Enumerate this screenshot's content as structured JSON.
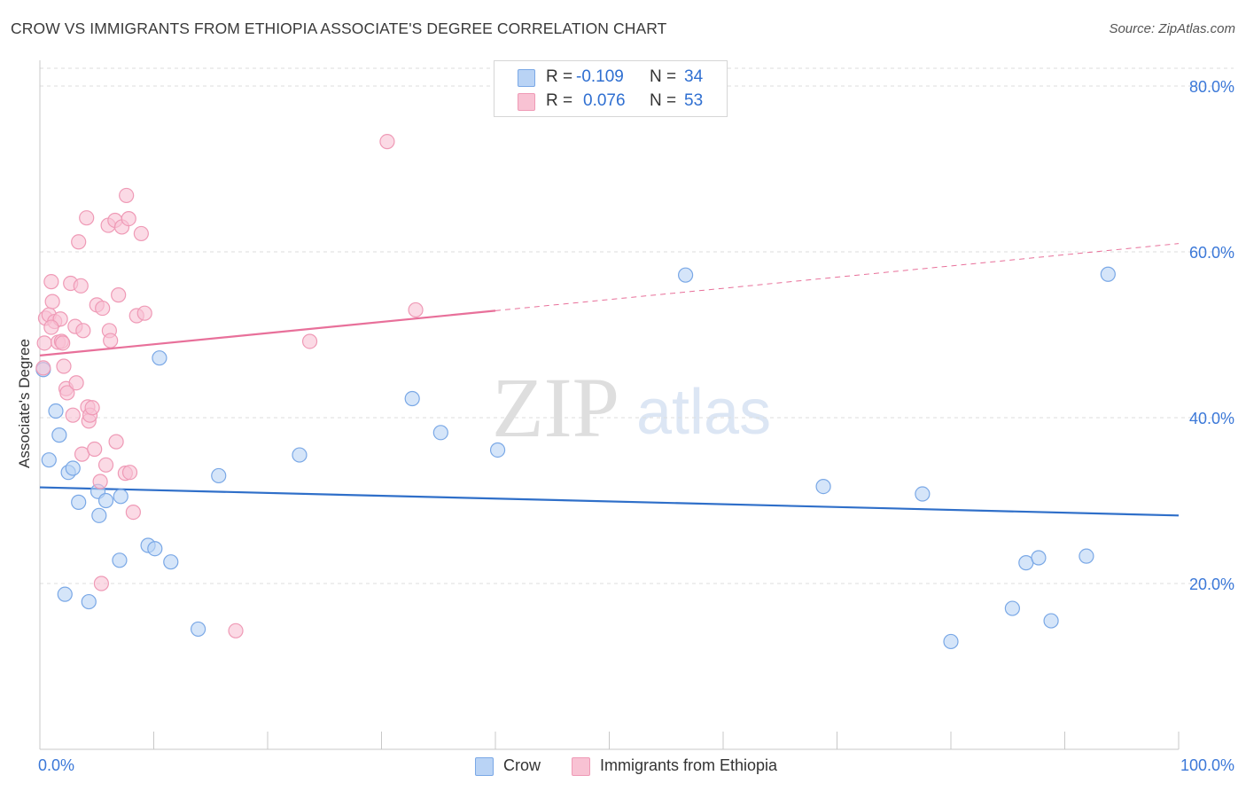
{
  "title": "CROW VS IMMIGRANTS FROM ETHIOPIA ASSOCIATE'S DEGREE CORRELATION CHART",
  "source": "Source: ZipAtlas.com",
  "watermark": {
    "zip": "ZIP",
    "atlas": "atlas"
  },
  "stats": {
    "crow": {
      "r_label": "R =",
      "r": "-0.109",
      "n_label": "N =",
      "n": "34"
    },
    "ethiopia": {
      "r_label": "R =",
      "r": "0.076",
      "n_label": "N =",
      "n": "53"
    }
  },
  "legend": {
    "crow": "Crow",
    "ethiopia": "Immigrants from Ethiopia"
  },
  "colors": {
    "crow_fill": "#b9d3f5",
    "crow_stroke": "#7aa8e6",
    "crow_line": "#2f6fc9",
    "eth_fill": "#f8c2d3",
    "eth_stroke": "#ef9ab6",
    "eth_line": "#e8709a",
    "axis_text": "#3b78d8",
    "grid": "#dddddd"
  },
  "chart_data": {
    "type": "scatter",
    "title": "CROW VS IMMIGRANTS FROM ETHIOPIA ASSOCIATE'S DEGREE CORRELATION CHART",
    "xlabel": "",
    "ylabel": "Associate's Degree",
    "xlim": [
      0,
      100
    ],
    "ylim": [
      0,
      80
    ],
    "x_tick_labels": [
      "0.0%",
      "100.0%"
    ],
    "y_ticks": [
      20,
      40,
      60,
      80
    ],
    "y_tick_labels": [
      "20.0%",
      "40.0%",
      "60.0%",
      "80.0%"
    ],
    "grid": true,
    "legend_position": "bottom",
    "series": [
      {
        "name": "Crow",
        "R": -0.109,
        "N": 34,
        "trend": {
          "x": [
            0,
            100
          ],
          "y": [
            31.6,
            28.2
          ],
          "dashed_from": null
        },
        "points": [
          [
            0.3,
            45.8
          ],
          [
            0.8,
            34.9
          ],
          [
            1.4,
            40.8
          ],
          [
            1.7,
            37.9
          ],
          [
            2.2,
            18.7
          ],
          [
            2.5,
            33.4
          ],
          [
            2.9,
            33.9
          ],
          [
            3.4,
            29.8
          ],
          [
            4.3,
            17.8
          ],
          [
            5.1,
            31.1
          ],
          [
            5.2,
            28.2
          ],
          [
            5.8,
            30.0
          ],
          [
            7.0,
            22.8
          ],
          [
            7.1,
            30.5
          ],
          [
            9.5,
            24.6
          ],
          [
            10.1,
            24.2
          ],
          [
            10.5,
            47.2
          ],
          [
            11.5,
            22.6
          ],
          [
            13.9,
            14.5
          ],
          [
            15.7,
            33.0
          ],
          [
            22.8,
            35.5
          ],
          [
            32.7,
            42.3
          ],
          [
            35.2,
            38.2
          ],
          [
            40.2,
            36.1
          ],
          [
            56.7,
            57.2
          ],
          [
            68.8,
            31.7
          ],
          [
            77.5,
            30.8
          ],
          [
            80.0,
            13.0
          ],
          [
            85.4,
            17.0
          ],
          [
            86.6,
            22.5
          ],
          [
            87.7,
            23.1
          ],
          [
            88.8,
            15.5
          ],
          [
            91.9,
            23.3
          ],
          [
            93.8,
            57.3
          ]
        ]
      },
      {
        "name": "Immigrants from Ethiopia",
        "R": 0.076,
        "N": 53,
        "trend": {
          "x": [
            0,
            100
          ],
          "y": [
            47.5,
            61.0
          ],
          "dashed_from": 40.0
        },
        "points": [
          [
            0.3,
            46.0
          ],
          [
            0.4,
            49.0
          ],
          [
            0.5,
            52.0
          ],
          [
            0.8,
            52.4
          ],
          [
            1.0,
            56.4
          ],
          [
            1.1,
            54.0
          ],
          [
            1.3,
            51.6
          ],
          [
            1.6,
            49.1
          ],
          [
            1.8,
            51.9
          ],
          [
            1.9,
            49.2
          ],
          [
            2.0,
            49.0
          ],
          [
            2.1,
            46.2
          ],
          [
            2.3,
            43.5
          ],
          [
            2.4,
            43.0
          ],
          [
            2.7,
            56.2
          ],
          [
            2.9,
            40.3
          ],
          [
            3.1,
            51.0
          ],
          [
            3.2,
            44.2
          ],
          [
            3.4,
            61.2
          ],
          [
            3.6,
            55.9
          ],
          [
            3.7,
            35.6
          ],
          [
            3.8,
            50.5
          ],
          [
            4.1,
            64.1
          ],
          [
            4.2,
            41.3
          ],
          [
            4.3,
            39.6
          ],
          [
            4.4,
            40.3
          ],
          [
            4.6,
            41.2
          ],
          [
            4.8,
            36.2
          ],
          [
            5.0,
            53.6
          ],
          [
            5.3,
            32.3
          ],
          [
            5.4,
            20.0
          ],
          [
            5.5,
            53.2
          ],
          [
            5.8,
            34.3
          ],
          [
            6.0,
            63.2
          ],
          [
            6.1,
            50.5
          ],
          [
            6.2,
            49.3
          ],
          [
            6.6,
            63.8
          ],
          [
            6.7,
            37.1
          ],
          [
            6.9,
            54.8
          ],
          [
            7.2,
            63.0
          ],
          [
            7.5,
            33.3
          ],
          [
            7.6,
            66.8
          ],
          [
            7.8,
            64.0
          ],
          [
            7.9,
            33.4
          ],
          [
            8.2,
            28.6
          ],
          [
            8.5,
            52.3
          ],
          [
            8.9,
            62.2
          ],
          [
            9.2,
            52.6
          ],
          [
            17.2,
            14.3
          ],
          [
            23.7,
            49.2
          ],
          [
            30.5,
            73.3
          ],
          [
            33.0,
            53.0
          ],
          [
            1.0,
            50.9
          ]
        ]
      }
    ]
  }
}
